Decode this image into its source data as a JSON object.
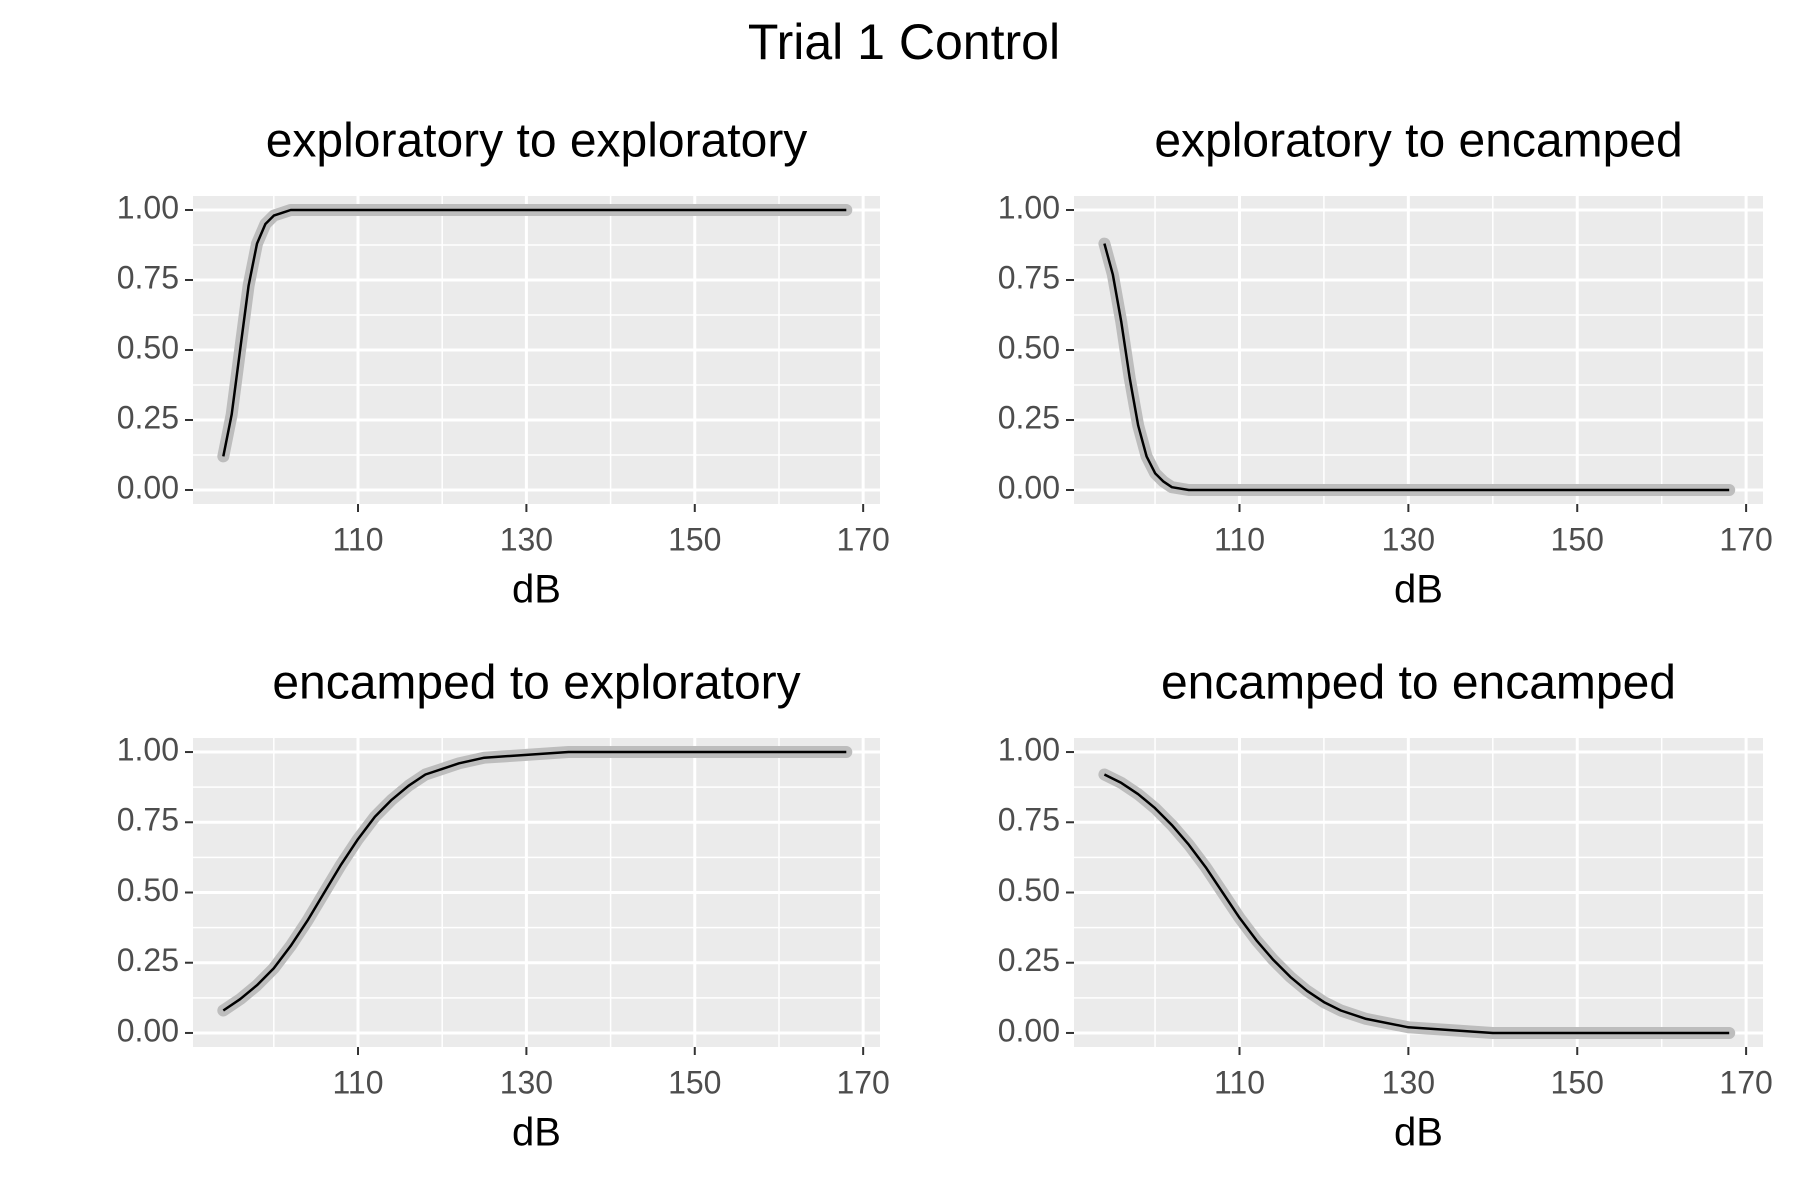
{
  "title": "Trial 1 Control",
  "chart_data": [
    {
      "type": "line",
      "title": "exploratory to exploratory",
      "x_label": "dB",
      "color": "#000000",
      "x": [
        94,
        95,
        96,
        97,
        98,
        99,
        100,
        101,
        102,
        104,
        106,
        110,
        120,
        130,
        140,
        150,
        160,
        168
      ],
      "values": [
        0.12,
        0.27,
        0.5,
        0.73,
        0.88,
        0.95,
        0.98,
        0.99,
        1,
        1,
        1,
        1,
        1,
        1,
        1,
        1,
        1,
        1
      ],
      "xlim": [
        90.4,
        172
      ],
      "xticks": [
        110,
        130,
        150,
        170
      ],
      "xminor": [
        100,
        120,
        140,
        160
      ],
      "ylim": [
        -0.05,
        1.05
      ],
      "yticks": [
        {
          "value": 0,
          "label": "0.00"
        },
        0.25,
        {
          "value": 0.5,
          "label": "0.50"
        },
        0.75,
        {
          "value": 1,
          "label": "1.00"
        }
      ],
      "yminor": [
        0.125,
        0.375,
        0.625,
        0.875
      ],
      "grid": true
    },
    {
      "type": "line",
      "title": "exploratory to encamped",
      "x_label": "dB",
      "color": "#000000",
      "x": [
        94,
        95,
        96,
        97,
        98,
        99,
        100,
        101,
        102,
        104,
        106,
        110,
        120,
        130,
        140,
        150,
        160,
        168
      ],
      "values": [
        0.88,
        0.77,
        0.6,
        0.4,
        0.23,
        0.12,
        0.06,
        0.03,
        0.01,
        0,
        0,
        0,
        0,
        0,
        0,
        0,
        0,
        0
      ],
      "xlim": [
        90.4,
        172
      ],
      "xticks": [
        110,
        130,
        150,
        170
      ],
      "xminor": [
        100,
        120,
        140,
        160
      ],
      "ylim": [
        -0.05,
        1.05
      ],
      "yticks": [
        {
          "value": 0,
          "label": "0.00"
        },
        0.25,
        {
          "value": 0.5,
          "label": "0.50"
        },
        0.75,
        {
          "value": 1,
          "label": "1.00"
        }
      ],
      "yminor": [
        0.125,
        0.375,
        0.625,
        0.875
      ],
      "grid": true
    },
    {
      "type": "line",
      "title": "encamped to exploratory",
      "x_label": "dB",
      "color": "#000000",
      "x": [
        94,
        96,
        98,
        100,
        102,
        104,
        106,
        108,
        110,
        112,
        114,
        116,
        118,
        120,
        122,
        125,
        130,
        135,
        140,
        150,
        160,
        168
      ],
      "values": [
        0.08,
        0.12,
        0.17,
        0.23,
        0.31,
        0.4,
        0.5,
        0.6,
        0.69,
        0.77,
        0.83,
        0.88,
        0.92,
        0.94,
        0.96,
        0.98,
        0.99,
        1,
        1,
        1,
        1,
        1
      ],
      "xlim": [
        90.4,
        172
      ],
      "xticks": [
        110,
        130,
        150,
        170
      ],
      "xminor": [
        100,
        120,
        140,
        160
      ],
      "ylim": [
        -0.05,
        1.05
      ],
      "yticks": [
        {
          "value": 0,
          "label": "0.00"
        },
        0.25,
        {
          "value": 0.5,
          "label": "0.50"
        },
        0.75,
        {
          "value": 1,
          "label": "1.00"
        }
      ],
      "yminor": [
        0.125,
        0.375,
        0.625,
        0.875
      ],
      "grid": true
    },
    {
      "type": "line",
      "title": "encamped to encamped",
      "x_label": "dB",
      "color": "#000000",
      "x": [
        94,
        96,
        98,
        100,
        102,
        104,
        106,
        108,
        110,
        112,
        114,
        116,
        118,
        120,
        122,
        125,
        130,
        135,
        140,
        150,
        160,
        168
      ],
      "values": [
        0.92,
        0.89,
        0.85,
        0.8,
        0.74,
        0.67,
        0.59,
        0.5,
        0.41,
        0.33,
        0.26,
        0.2,
        0.15,
        0.11,
        0.08,
        0.05,
        0.02,
        0.01,
        0,
        0,
        0,
        0
      ],
      "xlim": [
        90.4,
        172
      ],
      "xticks": [
        110,
        130,
        150,
        170
      ],
      "xminor": [
        100,
        120,
        140,
        160
      ],
      "ylim": [
        -0.05,
        1.05
      ],
      "yticks": [
        {
          "value": 0,
          "label": "0.00"
        },
        0.25,
        {
          "value": 0.5,
          "label": "0.50"
        },
        0.75,
        {
          "value": 1,
          "label": "1.00"
        }
      ],
      "yminor": [
        0.125,
        0.375,
        0.625,
        0.875
      ],
      "grid": true
    }
  ]
}
